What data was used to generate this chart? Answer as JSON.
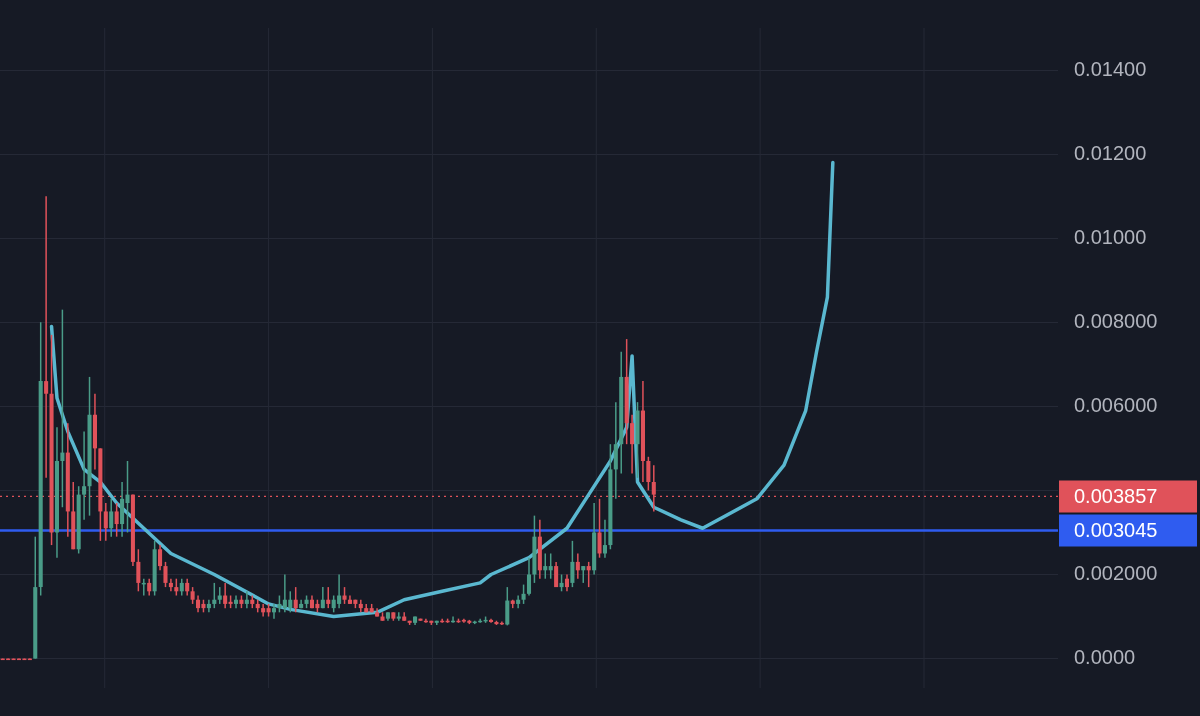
{
  "chart_data": {
    "type": "candlestick",
    "categories": [
      null,
      null,
      null,
      null,
      null,
      null,
      null,
      null,
      null,
      null,
      null,
      null,
      null,
      null,
      null,
      null,
      null,
      null,
      null,
      null,
      null,
      null,
      null,
      null,
      null,
      null,
      null,
      null,
      null,
      null,
      null,
      null,
      null,
      null,
      null,
      null,
      null,
      null,
      null,
      null,
      null,
      null,
      null,
      null,
      null,
      null,
      null,
      null,
      null,
      null,
      null,
      null,
      null,
      null,
      null,
      null,
      null,
      null,
      null,
      null,
      null,
      null,
      null,
      null,
      null,
      null,
      null,
      null,
      null,
      null,
      null,
      null,
      null,
      null,
      null,
      null,
      null,
      null,
      null,
      null,
      null,
      null,
      null,
      null,
      null,
      null,
      null,
      null,
      null,
      null,
      null,
      null,
      null,
      null,
      null,
      null,
      null,
      null,
      null,
      null,
      null,
      null,
      null,
      null,
      null,
      null,
      null,
      null,
      null,
      null,
      null,
      null,
      null,
      null,
      null,
      null,
      null,
      null,
      null,
      null,
      null,
      null,
      null,
      null,
      null,
      null,
      null,
      null,
      null,
      null,
      null,
      null,
      null,
      null,
      null,
      null,
      null,
      null,
      null,
      null,
      null,
      null,
      null,
      null,
      null,
      null,
      null,
      null,
      null,
      null,
      null,
      null,
      null,
      null,
      null,
      null,
      null,
      null,
      null,
      null,
      null,
      null,
      null,
      null,
      null,
      null,
      null,
      null,
      null,
      null,
      null,
      null,
      null,
      null,
      null,
      null,
      null,
      null,
      null,
      null,
      null,
      null,
      null,
      null,
      null,
      null,
      null,
      null,
      null,
      null,
      null,
      null,
      null,
      null,
      null
    ],
    "ohlc": [
      [
        0,
        0,
        0,
        0
      ],
      [
        0,
        0,
        0,
        0
      ],
      [
        0,
        0,
        0,
        0
      ],
      [
        0,
        0,
        0,
        0
      ],
      [
        0,
        0,
        0,
        0
      ],
      [
        0,
        0,
        0,
        0
      ],
      [
        0,
        0.0029,
        0,
        0.0017
      ],
      [
        0.0017,
        0.008,
        0.0015,
        0.0066
      ],
      [
        0.0066,
        0.011,
        0.0043,
        0.0063
      ],
      [
        0.0063,
        0.0077,
        0.0027,
        0.003
      ],
      [
        0.003,
        0.0055,
        0.0024,
        0.0047
      ],
      [
        0.0047,
        0.0083,
        0.0036,
        0.0049
      ],
      [
        0.0049,
        0.0056,
        0.0029,
        0.0035
      ],
      [
        0.0035,
        0.0042,
        0.0026,
        0.0026
      ],
      [
        0.0026,
        0.0041,
        0.0025,
        0.0039
      ],
      [
        0.0039,
        0.0054,
        0.0033,
        0.0041
      ],
      [
        0.0041,
        0.0067,
        0.0034,
        0.0058
      ],
      [
        0.0058,
        0.0063,
        0.0045,
        0.005
      ],
      [
        0.005,
        0.005,
        0.0028,
        0.0035
      ],
      [
        0.0035,
        0.0037,
        0.0028,
        0.0031
      ],
      [
        0.0031,
        0.0038,
        0.0029,
        0.0035
      ],
      [
        0.0035,
        0.0037,
        0.0029,
        0.0032
      ],
      [
        0.0032,
        0.0042,
        0.0029,
        0.0038
      ],
      [
        0.0037,
        0.0047,
        0.003,
        0.0039
      ],
      [
        0.0039,
        0.0039,
        0.0022,
        0.0023
      ],
      [
        0.0023,
        0.0026,
        0.0016,
        0.0018
      ],
      [
        0.0018,
        0.0019,
        0.0015,
        0.0018
      ],
      [
        0.0018,
        0.0019,
        0.0015,
        0.0016
      ],
      [
        0.0016,
        0.0028,
        0.0015,
        0.0026
      ],
      [
        0.0026,
        0.0027,
        0.0021,
        0.0022
      ],
      [
        0.0022,
        0.0023,
        0.0017,
        0.0018
      ],
      [
        0.0018,
        0.0019,
        0.0016,
        0.0017
      ],
      [
        0.0017,
        0.0019,
        0.0015,
        0.0016
      ],
      [
        0.0016,
        0.0019,
        0.0015,
        0.0018
      ],
      [
        0.0018,
        0.0019,
        0.0015,
        0.0016
      ],
      [
        0.0016,
        0.0017,
        0.0013,
        0.0014
      ],
      [
        0.0014,
        0.0015,
        0.0011,
        0.0012
      ],
      [
        0.0013,
        0.0014,
        0.0011,
        0.0012
      ],
      [
        0.0012,
        0.0014,
        0.0011,
        0.0013
      ],
      [
        0.0013,
        0.0018,
        0.0012,
        0.0014
      ],
      [
        0.0014,
        0.0017,
        0.0013,
        0.0015
      ],
      [
        0.0015,
        0.0018,
        0.0012,
        0.0013
      ],
      [
        0.00135,
        0.0015,
        0.0012,
        0.0013
      ],
      [
        0.0013,
        0.0015,
        0.0012,
        0.0014
      ],
      [
        0.0014,
        0.0015,
        0.0012,
        0.0013
      ],
      [
        0.0013,
        0.0016,
        0.0012,
        0.0014
      ],
      [
        0.0014,
        0.0015,
        0.0012,
        0.0013
      ],
      [
        0.0013,
        0.0014,
        0.0011,
        0.0012
      ],
      [
        0.0012,
        0.0013,
        0.001,
        0.0011
      ],
      [
        0.0012,
        0.0013,
        0.001,
        0.0011
      ],
      [
        0.0011,
        0.0013,
        0.00095,
        0.0012
      ],
      [
        0.0012,
        0.0015,
        0.0011,
        0.0013
      ],
      [
        0.0012,
        0.002,
        0.0011,
        0.0014
      ],
      [
        0.0012,
        0.0016,
        0.0011,
        0.0014
      ],
      [
        0.0014,
        0.0017,
        0.0011,
        0.0012
      ],
      [
        0.0012,
        0.0014,
        0.0012,
        0.0013
      ],
      [
        0.0013,
        0.0015,
        0.0012,
        0.0014
      ],
      [
        0.0014,
        0.0015,
        0.0012,
        0.0012
      ],
      [
        0.0013,
        0.0014,
        0.0011,
        0.0012
      ],
      [
        0.0012,
        0.0017,
        0.0012,
        0.0014
      ],
      [
        0.0014,
        0.0017,
        0.0012,
        0.0013
      ],
      [
        0.0012,
        0.0015,
        0.0011,
        0.0014
      ],
      [
        0.0013,
        0.002,
        0.0012,
        0.0015
      ],
      [
        0.0015,
        0.0017,
        0.0013,
        0.0014
      ],
      [
        0.0014,
        0.0015,
        0.0013,
        0.0013
      ],
      [
        0.0014,
        0.0014,
        0.0012,
        0.0013
      ],
      [
        0.0013,
        0.0014,
        0.0011,
        0.0012
      ],
      [
        0.0012,
        0.0013,
        0.0011,
        0.0011
      ],
      [
        0.0012,
        0.0013,
        0.0011,
        0.0011
      ],
      [
        0.0011,
        0.0012,
        0.001,
        0.001
      ],
      [
        0.001,
        0.0011,
        0.0009,
        0.0009
      ],
      [
        0.00095,
        0.0011,
        0.0009,
        0.0011
      ],
      [
        0.0011,
        0.0011,
        0.0009,
        0.00095
      ],
      [
        0.00095,
        0.0011,
        0.0009,
        0.001
      ],
      [
        0.001,
        0.0011,
        0.0009,
        0.0009
      ],
      [
        0.0009,
        0.0009,
        0.0008,
        0.00085
      ],
      [
        0.00085,
        0.001,
        0.0008,
        0.001
      ],
      [
        0.00095,
        0.00095,
        0.0009,
        0.0009
      ],
      [
        0.0009,
        0.00095,
        0.00085,
        0.0009
      ],
      [
        0.0009,
        0.0009,
        0.0008,
        0.00085
      ],
      [
        0.00085,
        0.0009,
        0.0008,
        0.0009
      ],
      [
        0.0009,
        0.00095,
        0.00085,
        0.00088
      ],
      [
        0.0009,
        0.00095,
        0.00085,
        0.00087
      ],
      [
        0.00087,
        0.001,
        0.00085,
        0.0009
      ],
      [
        0.0009,
        0.00095,
        0.00085,
        0.00088
      ],
      [
        0.00092,
        0.00095,
        0.00085,
        0.00088
      ],
      [
        0.0009,
        0.00092,
        0.00082,
        0.00085
      ],
      [
        0.00085,
        0.0009,
        0.00082,
        0.00088
      ],
      [
        0.00088,
        0.00095,
        0.00085,
        0.0009
      ],
      [
        0.0009,
        0.001,
        0.00085,
        0.00092
      ],
      [
        0.00092,
        0.00095,
        0.00085,
        0.00087
      ],
      [
        0.00087,
        0.0009,
        0.0008,
        0.00082
      ],
      [
        0.00085,
        0.00088,
        0.0008,
        0.00082
      ],
      [
        0.00081,
        0.0017,
        0.00079,
        0.00138
      ],
      [
        0.00138,
        0.0014,
        0.0012,
        0.0013
      ],
      [
        0.0013,
        0.0015,
        0.0012,
        0.0014
      ],
      [
        0.0014,
        0.00176,
        0.0013,
        0.00154
      ],
      [
        0.00154,
        0.0024,
        0.0015,
        0.002
      ],
      [
        0.002,
        0.0034,
        0.0018,
        0.0029
      ],
      [
        0.0029,
        0.0033,
        0.0019,
        0.0021
      ],
      [
        0.0021,
        0.0025,
        0.0019,
        0.0022
      ],
      [
        0.0021,
        0.0025,
        0.0019,
        0.0022
      ],
      [
        0.0022,
        0.0023,
        0.0017,
        0.0017
      ],
      [
        0.0017,
        0.002,
        0.0016,
        0.0018
      ],
      [
        0.0019,
        0.002,
        0.0016,
        0.0017
      ],
      [
        0.0018,
        0.0028,
        0.0017,
        0.0023
      ],
      [
        0.0023,
        0.0025,
        0.0019,
        0.0021
      ],
      [
        0.0021,
        0.0022,
        0.0018,
        0.0022
      ],
      [
        0.0022,
        0.0023,
        0.0017,
        0.0021
      ],
      [
        0.0021,
        0.0037,
        0.002,
        0.003
      ],
      [
        0.003,
        0.0038,
        0.0024,
        0.0025
      ],
      [
        0.0025,
        0.0033,
        0.0024,
        0.0027
      ],
      [
        0.0027,
        0.0051,
        0.0026,
        0.0045
      ],
      [
        0.0045,
        0.0061,
        0.0038,
        0.0051
      ],
      [
        0.0051,
        0.0073,
        0.0044,
        0.0067
      ],
      [
        0.0067,
        0.0076,
        0.0051,
        0.0056
      ],
      [
        0.0056,
        0.0058,
        0.0044,
        0.0051
      ],
      [
        0.0051,
        0.0061,
        0.0043,
        0.0059
      ],
      [
        0.0059,
        0.0066,
        0.0042,
        0.0047
      ],
      [
        0.0047,
        0.0048,
        0.004,
        0.0042
      ],
      [
        0.0042,
        0.0046,
        0.0035,
        0.0039
      ],
      null,
      null,
      null,
      null,
      null,
      null,
      null,
      null,
      null,
      null,
      null,
      null,
      null,
      null,
      null,
      null,
      null,
      null,
      null,
      null,
      null,
      null,
      null,
      null,
      null,
      null,
      null,
      null,
      null,
      null,
      null,
      null,
      null,
      null,
      null,
      null,
      null,
      null,
      null,
      null,
      null,
      null,
      null,
      null,
      null,
      null,
      null,
      null,
      null,
      null,
      null,
      null,
      null,
      null,
      null,
      null,
      null,
      null,
      null,
      null,
      null,
      null,
      null,
      null,
      null,
      null,
      null,
      null,
      null,
      null,
      null,
      null,
      null,
      null
    ],
    "colors": [
      "#e0525a",
      "#e0525a",
      "#e0525a",
      "#e0525a",
      "#e0525a",
      "#e0525a",
      "#4a9c88",
      "#4a9c88",
      "#e0525a",
      "#e0525a",
      "#4a9c88",
      "#4a9c88",
      "#e0525a",
      "#e0525a",
      "#4a9c88",
      "#4a9c88",
      "#4a9c88",
      "#e0525a",
      "#e0525a",
      "#e0525a",
      "#4a9c88",
      "#e0525a",
      "#4a9c88",
      "#4a9c88",
      "#e0525a",
      "#e0525a",
      "#4a9c88",
      "#e0525a",
      "#4a9c88",
      "#e0525a",
      "#e0525a",
      "#e0525a",
      "#e0525a",
      "#4a9c88",
      "#e0525a",
      "#e0525a",
      "#e0525a",
      "#e0525a",
      "#4a9c88",
      "#4a9c88",
      "#4a9c88",
      "#e0525a",
      "#e0525a",
      "#4a9c88",
      "#e0525a",
      "#4a9c88",
      "#e0525a",
      "#e0525a",
      "#e0525a",
      "#e0525a",
      "#4a9c88",
      "#4a9c88",
      "#4a9c88",
      "#4a9c88",
      "#e0525a",
      "#4a9c88",
      "#4a9c88",
      "#e0525a",
      "#e0525a",
      "#4a9c88",
      "#e0525a",
      "#4a9c88",
      "#4a9c88",
      "#e0525a",
      "#e0525a",
      "#e0525a",
      "#e0525a",
      "#e0525a",
      "#e0525a",
      "#e0525a",
      "#e0525a",
      "#4a9c88",
      "#e0525a",
      "#4a9c88",
      "#e0525a",
      "#e0525a",
      "#4a9c88",
      "#e0525a",
      "#e0525a",
      "#e0525a",
      "#4a9c88",
      "#e0525a",
      "#e0525a",
      "#4a9c88",
      "#e0525a",
      "#e0525a",
      "#e0525a",
      "#4a9c88",
      "#4a9c88",
      "#4a9c88",
      "#e0525a",
      "#e0525a",
      "#e0525a",
      "#4a9c88",
      "#e0525a",
      "#4a9c88",
      "#4a9c88",
      "#4a9c88",
      "#4a9c88",
      "#e0525a",
      "#4a9c88",
      "#4a9c88",
      "#e0525a",
      "#4a9c88",
      "#e0525a",
      "#4a9c88",
      "#e0525a",
      "#4a9c88",
      "#e0525a",
      "#4a9c88",
      "#e0525a",
      "#4a9c88",
      "#4a9c88",
      "#4a9c88",
      "#4a9c88",
      "#e0525a",
      "#e0525a",
      "#4a9c88",
      "#e0525a",
      "#e0525a",
      "#e0525a",
      null,
      null,
      null,
      null,
      null,
      null,
      null,
      null,
      null,
      null,
      null,
      null,
      null,
      null,
      null,
      null,
      null,
      null,
      null,
      null,
      null,
      null,
      null,
      null,
      null,
      null,
      null,
      null,
      null,
      null,
      null,
      null,
      null,
      null,
      null,
      null,
      null,
      null,
      null,
      null,
      null,
      null,
      null,
      null,
      null,
      null,
      null,
      null,
      null,
      null,
      null,
      null,
      null,
      null,
      null,
      null,
      null,
      null,
      null,
      null,
      null,
      null,
      null,
      null,
      null,
      null,
      null,
      null,
      null,
      null,
      null,
      null,
      null,
      null
    ],
    "series": [
      {
        "type": "line",
        "color": "#5ab8d0",
        "values": [
          null,
          null,
          null,
          null,
          null,
          null,
          null,
          null,
          null,
          0.0079,
          0.0062,
          null,
          0.0054,
          null,
          null,
          0.0045,
          null,
          null,
          0.0042,
          null,
          null,
          0.0037,
          null,
          null,
          null,
          null,
          0.0031,
          null,
          null,
          null,
          null,
          0.0025,
          null,
          null,
          null,
          null,
          null,
          null,
          null,
          0.002,
          null,
          null,
          null,
          null,
          null,
          null,
          null,
          null,
          null,
          0.0013,
          null,
          null,
          null,
          0.00117,
          null,
          null,
          null,
          null,
          null,
          null,
          null,
          0.001,
          null,
          null,
          null,
          null,
          null,
          null,
          null,
          0.0011,
          null,
          null,
          null,
          null,
          0.0014,
          null,
          null,
          null,
          null,
          null,
          null,
          0.0016,
          null,
          null,
          null,
          null,
          null,
          null,
          0.0018,
          null,
          0.002,
          null,
          null,
          null,
          null,
          null,
          null,
          0.0024,
          null,
          null,
          null,
          null,
          null,
          null,
          0.0031,
          null,
          null,
          null,
          0.0039,
          null,
          null,
          null,
          0.0047,
          null,
          null,
          0.0055,
          0.0072,
          0.0042,
          null,
          null,
          0.0036,
          null,
          null,
          null,
          null,
          0.0033,
          null,
          null,
          null,
          0.0031,
          null,
          null,
          null,
          null,
          null,
          null,
          null,
          null,
          null,
          0.0038,
          null,
          null,
          null,
          null,
          0.0046,
          null,
          null,
          null,
          0.0059,
          null,
          0.0073,
          null,
          0.0086,
          0.0118,
          null,
          null,
          null,
          null,
          null,
          null,
          null,
          null,
          null,
          null,
          null,
          null,
          null,
          null,
          null,
          null,
          null,
          null,
          null,
          null,
          null,
          null,
          null,
          null,
          null,
          null,
          null,
          null,
          null,
          null,
          null,
          null,
          null,
          null,
          null,
          null,
          null,
          null,
          null,
          null,
          null
        ]
      }
    ],
    "ylim": [
      -0.0007,
      0.015
    ],
    "yticks": [
      {
        "value": 0,
        "label": "0.0000"
      },
      {
        "value": 0.002,
        "label": "0.002000"
      },
      {
        "value": 0.004,
        "label": null
      },
      {
        "value": 0.006,
        "label": "0.006000"
      },
      {
        "value": 0.008,
        "label": "0.008000"
      },
      {
        "value": 0.01,
        "label": "0.01000"
      },
      {
        "value": 0.012,
        "label": "0.01200"
      },
      {
        "value": 0.014,
        "label": "0.01400"
      }
    ],
    "ref_lines": [
      {
        "axis": "y",
        "value": 0.003857,
        "label": "0.003857",
        "color": "#e0525a",
        "line_style": "dotted"
      },
      {
        "axis": "y",
        "value": 0.003045,
        "label": "0.003045",
        "color": "#2f5cf0",
        "line_style": "solid"
      }
    ],
    "grid": true,
    "legend": false,
    "marker": "none",
    "line_style": "solid",
    "tick_labels": "y"
  }
}
